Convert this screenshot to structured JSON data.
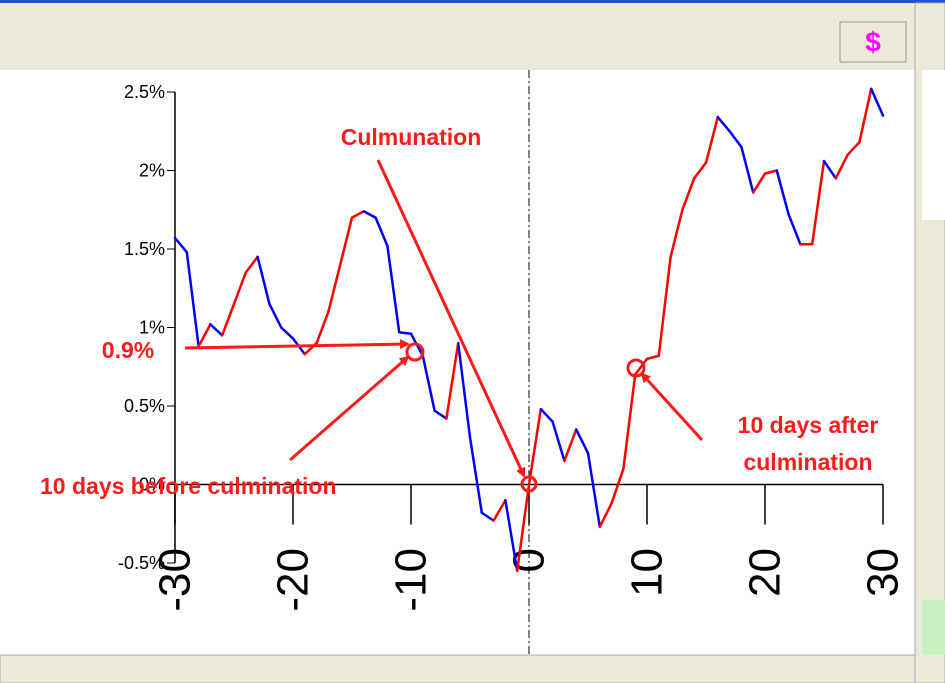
{
  "toolbar": {
    "button": "$"
  },
  "chart_data": {
    "type": "line",
    "x": [
      -30,
      -29,
      -28,
      -27,
      -26,
      -25,
      -24,
      -23,
      -22,
      -21,
      -20,
      -19,
      -18,
      -17,
      -16,
      -15,
      -14,
      -13,
      -12,
      -11,
      -10,
      -9,
      -8,
      -7,
      -6,
      -5,
      -4,
      -3,
      -2,
      -1,
      0,
      1,
      2,
      3,
      4,
      5,
      6,
      7,
      8,
      9,
      10,
      11,
      12,
      13,
      14,
      15,
      16,
      17,
      18,
      19,
      20,
      21,
      22,
      23,
      24,
      25,
      26,
      27,
      28,
      29,
      30
    ],
    "series": [
      {
        "up_color": "#ff0000",
        "down_color": "#0000ff",
        "values": [
          1.57,
          1.48,
          0.88,
          1.02,
          0.95,
          1.15,
          1.35,
          1.45,
          1.15,
          1.0,
          0.93,
          0.83,
          0.9,
          1.1,
          1.4,
          1.7,
          1.74,
          1.7,
          1.52,
          0.97,
          0.96,
          0.82,
          0.47,
          0.42,
          0.9,
          0.3,
          -0.18,
          -0.23,
          -0.1,
          -0.55,
          0,
          0.48,
          0.4,
          0.15,
          0.35,
          0.2,
          -0.27,
          -0.12,
          0.1,
          0.7,
          0.8,
          0.82,
          1.45,
          1.75,
          1.95,
          2.05,
          2.34,
          2.25,
          2.15,
          1.86,
          1.98,
          2.0,
          1.72,
          1.53,
          1.53,
          2.06,
          1.95,
          2.1,
          2.18,
          2.52,
          2.35
        ]
      }
    ],
    "xlim": [
      -30,
      30
    ],
    "ylim": [
      -0.5,
      2.5
    ],
    "xticks": [
      -30,
      -20,
      -10,
      0,
      10,
      20,
      30
    ],
    "yticks": [
      {
        "value": -0.5,
        "label": "-0.5%"
      },
      {
        "value": 0,
        "label": "0%"
      },
      {
        "value": 0.5,
        "label": "0.5%"
      },
      {
        "value": 1,
        "label": "1%"
      },
      {
        "value": 1.5,
        "label": "1.5%"
      },
      {
        "value": 2,
        "label": "2%"
      },
      {
        "value": 2.5,
        "label": "2.5%"
      }
    ],
    "annotations": {
      "culmination": "Culmunation",
      "level": "0.9%",
      "before": "10 days before culmination",
      "after_1": "10 days after",
      "after_2": "culmination"
    }
  }
}
